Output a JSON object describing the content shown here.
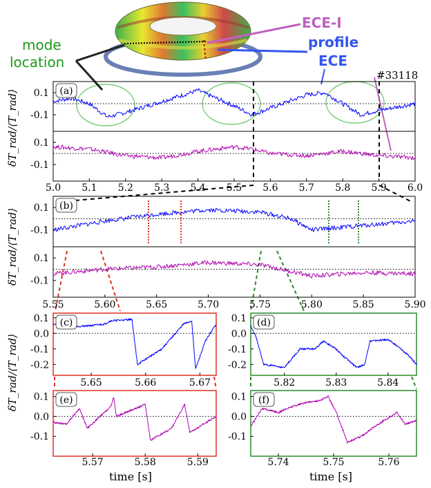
{
  "figure": {
    "shot": "#33118",
    "ylabel": "δT_rad/⟨T_rad⟩",
    "xlabel": "time [s]"
  },
  "annotations": {
    "mode_location": [
      "mode",
      "location"
    ],
    "ece_i": "ECE-I",
    "profile": "profile",
    "ece": "ECE"
  },
  "colors": {
    "ece": "#0000ff",
    "ece_i": "#b000b0",
    "ece_label": "#3355ee",
    "ece_i_label": "#c060c0",
    "mode_label": "#1a9a1a",
    "box_red": "#e03020",
    "box_green": "#2a8a2a",
    "ellipse": "#7ccf7c"
  },
  "chart_data": [
    {
      "panel": "a",
      "label": "(a)",
      "type": "line",
      "xlim": [
        5.0,
        6.0
      ],
      "ylim": [
        -0.25,
        0.2
      ],
      "xticks": [
        "5.0",
        "5.1",
        "5.2",
        "5.3",
        "5.4",
        "5.5",
        "5.6",
        "5.7",
        "5.8",
        "5.9",
        "6.0"
      ],
      "yticks": [
        "0.1",
        "-0.1"
      ],
      "zero_line": 0.0,
      "series": [
        {
          "color": "ece",
          "points": [
            [
              5.0,
              0.02
            ],
            [
              5.05,
              0.05
            ],
            [
              5.1,
              0.0
            ],
            [
              5.15,
              -0.12
            ],
            [
              5.2,
              -0.08
            ],
            [
              5.3,
              0.02
            ],
            [
              5.4,
              0.12
            ],
            [
              5.45,
              0.05
            ],
            [
              5.5,
              -0.02
            ],
            [
              5.55,
              -0.1
            ],
            [
              5.6,
              -0.04
            ],
            [
              5.7,
              0.08
            ],
            [
              5.75,
              0.1
            ],
            [
              5.8,
              0.0
            ],
            [
              5.85,
              -0.1
            ],
            [
              5.9,
              -0.06
            ],
            [
              6.0,
              0.0
            ]
          ]
        },
        {
          "color": "ece_i",
          "points": [
            [
              5.0,
              0.06
            ],
            [
              5.1,
              0.04
            ],
            [
              5.2,
              -0.02
            ],
            [
              5.3,
              -0.04
            ],
            [
              5.4,
              0.02
            ],
            [
              5.5,
              0.06
            ],
            [
              5.55,
              0.04
            ],
            [
              5.6,
              0.0
            ],
            [
              5.7,
              -0.02
            ],
            [
              5.8,
              0.02
            ],
            [
              5.9,
              -0.02
            ],
            [
              6.0,
              -0.04
            ]
          ]
        }
      ]
    },
    {
      "panel": "b",
      "label": "(b)",
      "type": "line",
      "xlim": [
        5.55,
        5.9
      ],
      "ylim": [
        -0.25,
        0.2
      ],
      "xticks": [
        "5.55",
        "5.60",
        "5.65",
        "5.70",
        "5.75",
        "5.80",
        "5.85",
        "5.90"
      ],
      "yticks": [
        "0.1",
        "-0.1"
      ],
      "zero_line": 0.0,
      "series": [
        {
          "color": "ece",
          "points": [
            [
              5.55,
              -0.1
            ],
            [
              5.6,
              -0.02
            ],
            [
              5.65,
              0.04
            ],
            [
              5.7,
              0.08
            ],
            [
              5.75,
              0.06
            ],
            [
              5.78,
              0.0
            ],
            [
              5.8,
              -0.1
            ],
            [
              5.85,
              -0.06
            ],
            [
              5.9,
              -0.02
            ]
          ]
        },
        {
          "color": "ece_i",
          "points": [
            [
              5.55,
              -0.04
            ],
            [
              5.6,
              0.0
            ],
            [
              5.65,
              0.02
            ],
            [
              5.7,
              0.06
            ],
            [
              5.75,
              0.04
            ],
            [
              5.78,
              -0.02
            ],
            [
              5.8,
              -0.06
            ],
            [
              5.85,
              -0.03
            ],
            [
              5.9,
              -0.04
            ]
          ]
        }
      ]
    },
    {
      "panel": "c",
      "label": "(c)",
      "type": "line",
      "xlim": [
        5.643,
        5.673
      ],
      "ylim": [
        -0.27,
        0.13
      ],
      "xticks": [
        "5.65",
        "5.66",
        "5.67"
      ],
      "yticks": [
        "0.1",
        "0.0",
        "-0.1",
        "-0.2"
      ],
      "zero_line": 0.0,
      "series": [
        {
          "color": "ece",
          "points": [
            [
              5.643,
              0.06
            ],
            [
              5.645,
              0.04
            ],
            [
              5.65,
              0.05
            ],
            [
              5.6525,
              0.06
            ],
            [
              5.6535,
              0.08
            ],
            [
              5.6575,
              0.09
            ],
            [
              5.6585,
              -0.2
            ],
            [
              5.663,
              -0.1
            ],
            [
              5.667,
              0.06
            ],
            [
              5.6685,
              0.08
            ],
            [
              5.6692,
              -0.23
            ],
            [
              5.671,
              -0.05
            ],
            [
              5.673,
              0.06
            ]
          ]
        }
      ]
    },
    {
      "panel": "d",
      "label": "(d)",
      "type": "line",
      "xlim": [
        5.8135,
        5.8455
      ],
      "ylim": [
        -0.27,
        0.13
      ],
      "xticks": [
        "5.82",
        "5.83",
        "5.84"
      ],
      "yticks": [
        "0.1",
        "0.0",
        "-0.1",
        "-0.2"
      ],
      "zero_line": 0.0,
      "series": [
        {
          "color": "ece",
          "points": [
            [
              5.8135,
              0.05
            ],
            [
              5.8145,
              -0.02
            ],
            [
              5.816,
              -0.2
            ],
            [
              5.82,
              -0.22
            ],
            [
              5.823,
              -0.1
            ],
            [
              5.826,
              -0.1
            ],
            [
              5.8275,
              -0.05
            ],
            [
              5.83,
              -0.1
            ],
            [
              5.8315,
              -0.15
            ],
            [
              5.834,
              -0.22
            ],
            [
              5.8355,
              -0.2
            ],
            [
              5.8365,
              -0.05
            ],
            [
              5.84,
              -0.04
            ],
            [
              5.8425,
              -0.1
            ],
            [
              5.8445,
              -0.16
            ],
            [
              5.8455,
              -0.2
            ]
          ]
        }
      ]
    },
    {
      "panel": "e",
      "label": "(e)",
      "type": "line",
      "xlim": [
        5.5625,
        5.5935
      ],
      "ylim": [
        -0.2,
        0.13
      ],
      "xticks": [
        "5.57",
        "5.58",
        "5.59"
      ],
      "yticks": [
        "0.1",
        "0.0",
        "-0.1"
      ],
      "zero_line": 0.0,
      "series": [
        {
          "color": "ece_i",
          "points": [
            [
              5.5625,
              -0.03
            ],
            [
              5.565,
              -0.04
            ],
            [
              5.5675,
              0.04
            ],
            [
              5.569,
              -0.06
            ],
            [
              5.5735,
              0.05
            ],
            [
              5.574,
              0.1
            ],
            [
              5.5745,
              0.0
            ],
            [
              5.58,
              0.06
            ],
            [
              5.581,
              -0.12
            ],
            [
              5.585,
              -0.06
            ],
            [
              5.5875,
              0.06
            ],
            [
              5.5885,
              -0.08
            ],
            [
              5.5935,
              0.0
            ]
          ]
        }
      ]
    },
    {
      "panel": "f",
      "label": "(f)",
      "type": "line",
      "xlim": [
        5.735,
        5.765
      ],
      "ylim": [
        -0.2,
        0.13
      ],
      "xticks": [
        "5.74",
        "5.75",
        "5.76"
      ],
      "yticks": [
        "0.1",
        "0.0",
        "-0.1"
      ],
      "zero_line": 0.0,
      "series": [
        {
          "color": "ece_i",
          "points": [
            [
              5.735,
              -0.05
            ],
            [
              5.737,
              0.04
            ],
            [
              5.74,
              0.02
            ],
            [
              5.7425,
              0.05
            ],
            [
              5.745,
              0.07
            ],
            [
              5.7475,
              0.08
            ],
            [
              5.749,
              0.1
            ],
            [
              5.7505,
              0.02
            ],
            [
              5.7525,
              -0.13
            ],
            [
              5.755,
              -0.1
            ],
            [
              5.758,
              -0.04
            ],
            [
              5.7615,
              0.02
            ],
            [
              5.763,
              -0.04
            ],
            [
              5.765,
              -0.02
            ]
          ]
        }
      ]
    }
  ]
}
